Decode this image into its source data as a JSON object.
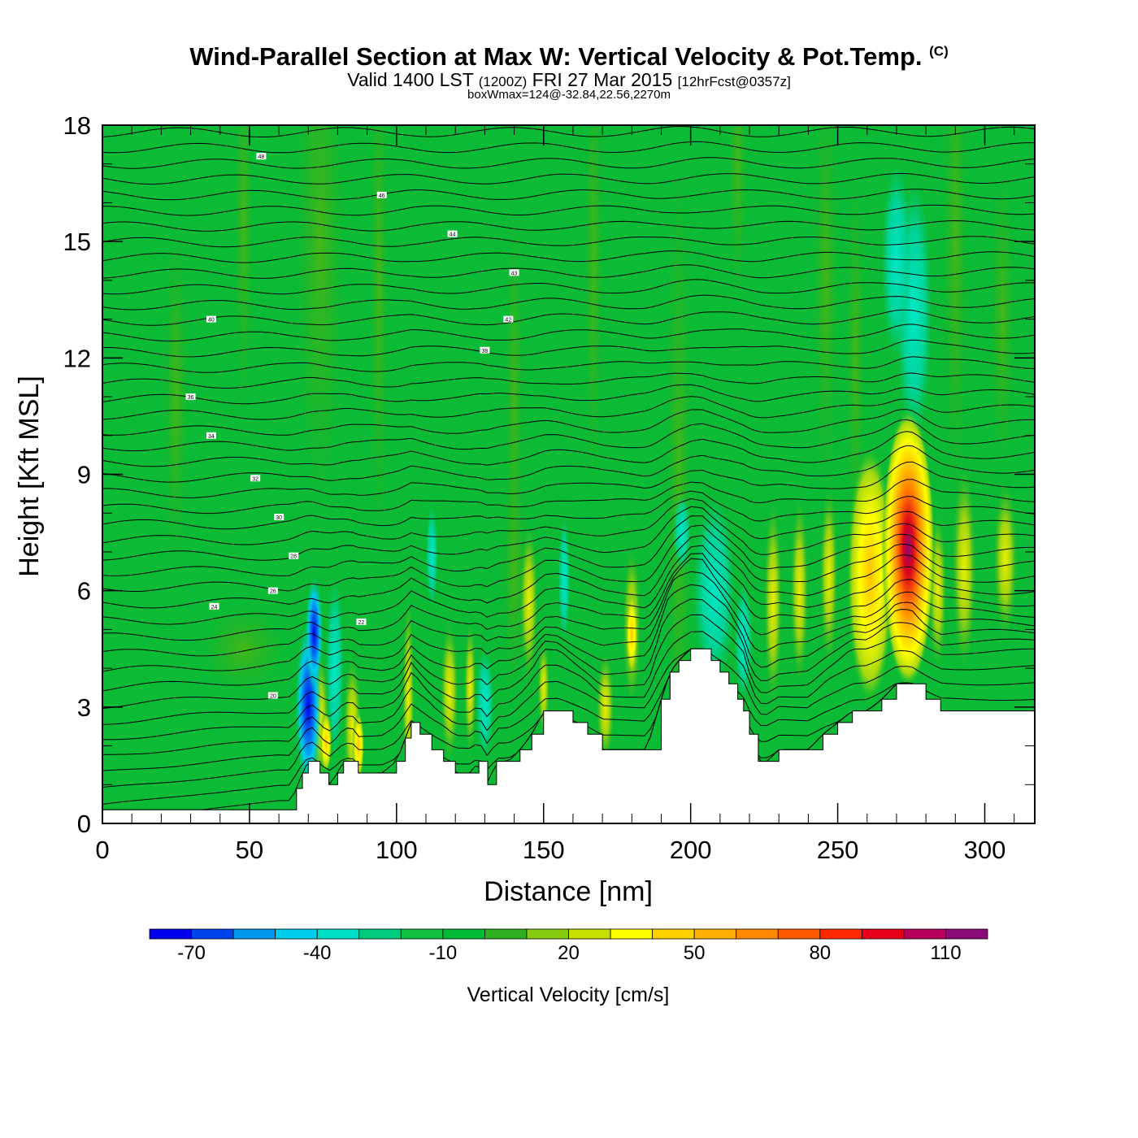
{
  "header": {
    "title_main": "Wind-Parallel Section at Max W: Vertical Velocity & Pot.Temp.",
    "title_mark": "(C)",
    "valid_prefix": "Valid 1400 LST",
    "valid_utc": "(1200Z)",
    "valid_date": "FRI 27 Mar 2015",
    "forecast": "[12hrFcst@0357z]",
    "box_info": "boxWmax=124@-32.84,22.56,2270m"
  },
  "chart_data": {
    "type": "heatmap",
    "xlabel": "Distance [nm]",
    "ylabel": "Height [Kft MSL]",
    "xlim": [
      0,
      317
    ],
    "ylim": [
      0,
      18
    ],
    "x_ticks": [
      0,
      50,
      100,
      150,
      200,
      250,
      300
    ],
    "y_ticks": [
      0,
      3,
      6,
      9,
      12,
      15,
      18
    ],
    "colorbar": {
      "title": "Vertical Velocity [cm/s]",
      "levels": [
        -80,
        -70,
        -60,
        -50,
        -40,
        -30,
        -20,
        -10,
        0,
        10,
        20,
        30,
        40,
        50,
        60,
        70,
        80,
        90,
        100,
        110,
        120,
        130
      ],
      "labels": [
        -70,
        -40,
        -10,
        20,
        50,
        80,
        110
      ],
      "colors": [
        "#0000ee",
        "#0044ee",
        "#0099ee",
        "#00ccee",
        "#00e0c8",
        "#00cc80",
        "#10c040",
        "#00bb33",
        "#30b020",
        "#88cc10",
        "#c8e000",
        "#ffff00",
        "#ffd000",
        "#ffb000",
        "#ff8800",
        "#ff5a00",
        "#ff2800",
        "#e8001a",
        "#b8005a",
        "#8a0a78"
      ]
    },
    "terrain_profile": {
      "distance_nm": [
        0,
        64,
        66,
        68,
        70,
        72,
        74,
        77,
        80,
        82,
        85,
        87,
        90,
        95,
        100,
        103,
        105,
        108,
        112,
        116,
        120,
        125,
        128,
        131,
        134,
        138,
        142,
        146,
        150,
        155,
        160,
        165,
        170,
        175,
        180,
        185,
        190,
        193,
        196,
        200,
        204,
        207,
        210,
        213,
        216,
        218,
        220,
        223,
        226,
        230,
        235,
        240,
        245,
        250,
        255,
        260,
        265,
        270,
        275,
        280,
        285,
        290,
        300,
        317
      ],
      "height_kft": [
        0.35,
        0.35,
        0.9,
        1.3,
        1.6,
        1.6,
        1.3,
        1.0,
        1.3,
        1.6,
        1.6,
        1.3,
        1.3,
        1.3,
        1.6,
        2.2,
        2.6,
        2.3,
        1.9,
        1.6,
        1.3,
        1.3,
        1.6,
        1.0,
        1.6,
        1.6,
        1.9,
        2.3,
        2.9,
        2.9,
        2.6,
        2.3,
        1.9,
        1.9,
        1.9,
        1.9,
        3.2,
        3.9,
        4.2,
        4.5,
        4.5,
        4.2,
        3.9,
        3.6,
        3.2,
        2.9,
        2.3,
        1.6,
        1.6,
        1.9,
        1.9,
        1.9,
        2.3,
        2.6,
        2.9,
        2.9,
        3.2,
        3.6,
        3.6,
        3.2,
        2.9,
        2.9,
        2.9,
        2.9
      ]
    },
    "updrafts": [
      {
        "x_nm": 274,
        "y_kft": 7.2,
        "w_cms": 124
      },
      {
        "x_nm": 261,
        "y_kft": 6.0,
        "w_cms": 55
      },
      {
        "x_nm": 70,
        "y_kft": 3.0,
        "w_cms": -70
      }
    ],
    "theta_contour_labels": [
      "48",
      "46",
      "44",
      "43",
      "42",
      "40",
      "38",
      "36",
      "34",
      "32",
      "30",
      "28",
      "26",
      "24",
      "22",
      "20"
    ]
  }
}
